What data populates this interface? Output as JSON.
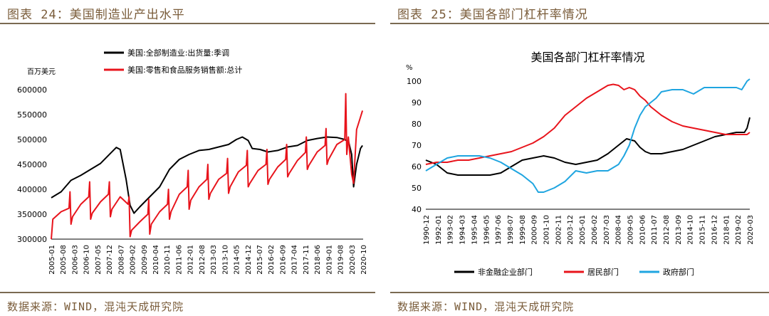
{
  "left": {
    "figure_title": "图表 24：美国制造业产出水平",
    "source": "数据来源：WIND，混沌天成研究院"
  },
  "right": {
    "figure_title": "图表 25：美国各部门杠杆率情况",
    "source": "数据来源：WIND，混沌天成研究院"
  },
  "chart_data": [
    {
      "type": "line",
      "title": "",
      "ylabel": "百万美元",
      "ylim": [
        300000,
        600000
      ],
      "yticks": [
        300000,
        350000,
        400000,
        450000,
        500000,
        550000,
        600000
      ],
      "ytick_labels": [
        "300000",
        "350000",
        "400000",
        "450000",
        "500000",
        "550000",
        "600000"
      ],
      "xlim": [
        2005.0,
        2020.833
      ],
      "xtick_labels": [
        "2005-01",
        "2005-08",
        "2006-03",
        "2006-10",
        "2007-05",
        "2007-12",
        "2008-07",
        "2009-02",
        "2009-09",
        "2010-04",
        "2010-11",
        "2011-06",
        "2012-01",
        "2012-08",
        "2013-03",
        "2013-10",
        "2014-05",
        "2014-12",
        "2015-07",
        "2016-02",
        "2016-09",
        "2017-04",
        "2017-11",
        "2018-06",
        "2019-01",
        "2019-08",
        "2020-03",
        "2020-10"
      ],
      "legend_position": "top",
      "series": [
        {
          "name": "美国:全部制造业:出货量:季调",
          "color": "#000000",
          "x": [
            2005.0,
            2005.5,
            2006.0,
            2006.5,
            2007.0,
            2007.5,
            2008.0,
            2008.3,
            2008.5,
            2008.8,
            2009.0,
            2009.2,
            2009.5,
            2010.0,
            2010.5,
            2011.0,
            2011.5,
            2012.0,
            2012.5,
            2013.0,
            2013.5,
            2014.0,
            2014.4,
            2014.7,
            2015.0,
            2015.2,
            2015.6,
            2016.0,
            2016.5,
            2017.0,
            2017.5,
            2018.0,
            2018.5,
            2019.0,
            2019.5,
            2019.9,
            2020.1,
            2020.25,
            2020.35,
            2020.5,
            2020.7,
            2020.8
          ],
          "values": [
            383000,
            395000,
            418000,
            428000,
            440000,
            452000,
            472000,
            484000,
            480000,
            420000,
            368000,
            352000,
            365000,
            385000,
            405000,
            440000,
            460000,
            470000,
            478000,
            480000,
            485000,
            490000,
            500000,
            505000,
            498000,
            482000,
            480000,
            475000,
            478000,
            485000,
            488000,
            498000,
            502000,
            505000,
            504000,
            500000,
            495000,
            470000,
            405000,
            450000,
            482000,
            488000
          ]
        },
        {
          "name": "美国:零售和食品服务销售额:总计",
          "color": "#e8141c",
          "x": [
            2005.0,
            2005.08,
            2005.5,
            2005.9,
            2005.95,
            2006.0,
            2006.08,
            2006.5,
            2006.9,
            2006.95,
            2007.0,
            2007.08,
            2007.5,
            2007.9,
            2007.95,
            2008.0,
            2008.08,
            2008.5,
            2008.9,
            2008.95,
            2009.0,
            2009.08,
            2009.5,
            2009.9,
            2009.95,
            2010.0,
            2010.08,
            2010.5,
            2010.9,
            2010.95,
            2011.0,
            2011.08,
            2011.5,
            2011.9,
            2011.95,
            2012.0,
            2012.08,
            2012.5,
            2012.9,
            2012.95,
            2013.0,
            2013.08,
            2013.5,
            2013.9,
            2013.95,
            2014.0,
            2014.08,
            2014.5,
            2014.9,
            2014.95,
            2015.0,
            2015.08,
            2015.5,
            2015.9,
            2015.95,
            2016.0,
            2016.08,
            2016.5,
            2016.9,
            2016.95,
            2017.0,
            2017.08,
            2017.5,
            2017.9,
            2017.95,
            2018.0,
            2018.08,
            2018.5,
            2018.9,
            2018.95,
            2019.0,
            2019.08,
            2019.5,
            2019.9,
            2019.95,
            2020.0,
            2020.08,
            2020.25,
            2020.35,
            2020.5,
            2020.7,
            2020.8
          ],
          "values": [
            300000,
            340000,
            355000,
            362000,
            395000,
            330000,
            345000,
            370000,
            385000,
            415000,
            340000,
            352000,
            375000,
            390000,
            415000,
            345000,
            360000,
            385000,
            370000,
            385000,
            305000,
            318000,
            335000,
            350000,
            380000,
            310000,
            330000,
            355000,
            370000,
            400000,
            340000,
            355000,
            390000,
            405000,
            438000,
            360000,
            378000,
            405000,
            420000,
            450000,
            380000,
            392000,
            420000,
            432000,
            462000,
            392000,
            405000,
            435000,
            448000,
            478000,
            405000,
            412000,
            438000,
            450000,
            480000,
            410000,
            420000,
            445000,
            460000,
            490000,
            425000,
            432000,
            458000,
            474000,
            505000,
            440000,
            448000,
            475000,
            488000,
            522000,
            450000,
            460000,
            490000,
            500000,
            592000,
            470000,
            505000,
            430000,
            412000,
            520000,
            545000,
            558000
          ]
        }
      ]
    },
    {
      "type": "line",
      "title": "美国各部门杠杆率情况",
      "ylabel": "%",
      "ylim": [
        40,
        100
      ],
      "yticks": [
        40,
        50,
        60,
        70,
        80,
        90,
        100
      ],
      "ytick_labels": [
        "40",
        "50",
        "60",
        "70",
        "80",
        "90",
        "100"
      ],
      "xlim": [
        1990.0,
        2020.25
      ],
      "xtick_labels": [
        "1990-12",
        "1992-01",
        "1993-02",
        "1994-03",
        "1995-04",
        "1996-05",
        "1997-06",
        "1998-07",
        "1999-08",
        "2000-09",
        "2001-10",
        "2002-11",
        "2003-12",
        "2005-01",
        "2006-02",
        "2007-03",
        "2008-04",
        "2009-05",
        "2010-06",
        "2011-07",
        "2012-08",
        "2013-09",
        "2014-10",
        "2015-11",
        "2016-12",
        "2018-01",
        "2019-02",
        "2020-03"
      ],
      "legend_position": "bottom",
      "series": [
        {
          "name": "非金融企业部门",
          "color": "#000000",
          "x": [
            1990.0,
            1991.0,
            1992.0,
            1993.0,
            1994.0,
            1995.0,
            1996.0,
            1997.0,
            1998.0,
            1999.0,
            2000.0,
            2001.0,
            2002.0,
            2003.0,
            2004.0,
            2005.0,
            2006.0,
            2007.0,
            2008.0,
            2008.75,
            2009.5,
            2010.0,
            2010.5,
            2011.0,
            2011.5,
            2012.0,
            2013.0,
            2014.0,
            2015.0,
            2016.0,
            2017.0,
            2018.0,
            2019.0,
            2019.75,
            2020.0,
            2020.25
          ],
          "values": [
            63,
            61,
            57,
            56,
            56,
            56,
            56,
            57,
            60,
            63,
            64,
            65,
            64,
            62,
            61,
            62,
            63,
            66,
            70,
            73,
            72,
            69,
            67,
            66,
            66,
            66,
            67,
            68,
            70,
            72,
            74,
            75,
            76,
            76,
            78,
            83
          ]
        },
        {
          "name": "居民部门",
          "color": "#e8141c",
          "x": [
            1990.0,
            1991.0,
            1992.0,
            1993.0,
            1994.0,
            1995.0,
            1996.0,
            1997.0,
            1998.0,
            1999.0,
            2000.0,
            2001.0,
            2002.0,
            2003.0,
            2004.0,
            2005.0,
            2006.0,
            2007.0,
            2007.5,
            2008.0,
            2008.5,
            2009.0,
            2009.5,
            2010.0,
            2010.5,
            2011.0,
            2012.0,
            2013.0,
            2014.0,
            2015.0,
            2016.0,
            2017.0,
            2018.0,
            2019.0,
            2020.0,
            2020.25
          ],
          "values": [
            61,
            62,
            62,
            63,
            63,
            64,
            65,
            66,
            67,
            69,
            71,
            74,
            78,
            84,
            88,
            92,
            95,
            98,
            98.5,
            98,
            96,
            97,
            96,
            93,
            91,
            88,
            84,
            81,
            79,
            78,
            77,
            76,
            75,
            75,
            75,
            76
          ]
        },
        {
          "name": "政府部门",
          "color": "#1fa5e0",
          "x": [
            1990.0,
            1991.0,
            1992.0,
            1993.0,
            1994.0,
            1995.0,
            1996.0,
            1997.0,
            1998.0,
            1999.0,
            2000.0,
            2000.5,
            2001.0,
            2002.0,
            2003.0,
            2004.0,
            2005.0,
            2006.0,
            2007.0,
            2008.0,
            2008.5,
            2009.0,
            2009.5,
            2010.0,
            2010.5,
            2011.0,
            2011.5,
            2012.0,
            2013.0,
            2014.0,
            2015.0,
            2016.0,
            2017.0,
            2018.0,
            2019.0,
            2019.5,
            2020.0,
            2020.25
          ],
          "values": [
            58,
            61,
            64,
            65,
            65,
            65,
            64,
            62,
            59,
            56,
            52,
            48,
            48,
            50,
            53,
            58,
            57,
            58,
            58,
            61,
            65,
            70,
            78,
            84,
            88,
            90,
            92,
            95,
            96,
            96,
            94,
            97,
            97,
            97,
            97,
            96,
            100,
            101
          ]
        }
      ]
    }
  ]
}
